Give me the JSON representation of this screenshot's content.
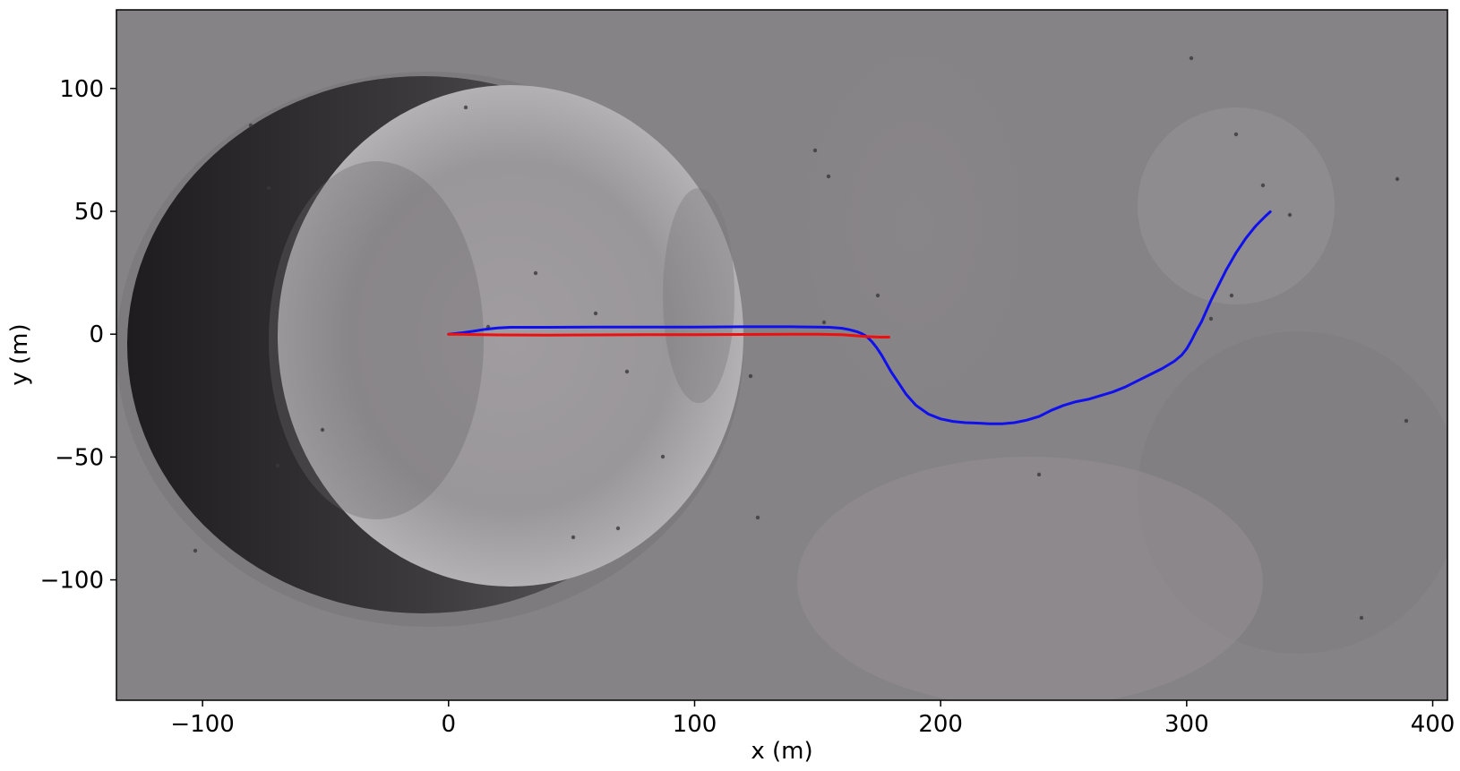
{
  "chart_data": {
    "type": "line",
    "title": "",
    "xlabel": "x (m)",
    "ylabel": "y (m)",
    "xlim": [
      -135,
      406
    ],
    "ylim": [
      -149,
      132
    ],
    "grid": false,
    "background": "grayscale lunar surface image with a large crater",
    "x_ticks": [
      {
        "value": -100,
        "label": "−100"
      },
      {
        "value": 0,
        "label": "0"
      },
      {
        "value": 100,
        "label": "100"
      },
      {
        "value": 200,
        "label": "200"
      },
      {
        "value": 300,
        "label": "300"
      },
      {
        "value": 400,
        "label": "400"
      }
    ],
    "y_ticks": [
      {
        "value": 100,
        "label": "100"
      },
      {
        "value": 50,
        "label": "50"
      },
      {
        "value": 0,
        "label": "0"
      },
      {
        "value": -50,
        "label": "−50"
      },
      {
        "value": -100,
        "label": "−100"
      }
    ],
    "series": [
      {
        "color": "#1010ee",
        "x": [
          0,
          5,
          10,
          15,
          20,
          25,
          30,
          40,
          60,
          80,
          100,
          120,
          140,
          150,
          155,
          160,
          163,
          166,
          168,
          170,
          172,
          174,
          176,
          178,
          180,
          183,
          186,
          190,
          195,
          200,
          205,
          210,
          215,
          220,
          225,
          230,
          235,
          240,
          245,
          250,
          255,
          260,
          265,
          270,
          275,
          280,
          285,
          290,
          295,
          298,
          300,
          302,
          304,
          306,
          308,
          310,
          312,
          314,
          316,
          318,
          320,
          322,
          324,
          326,
          328,
          330,
          332,
          334
        ],
        "y": [
          0,
          0.5,
          1.2,
          2.0,
          2.5,
          2.8,
          2.8,
          2.8,
          2.9,
          2.9,
          2.9,
          3.0,
          3.0,
          2.9,
          2.8,
          2.4,
          1.8,
          1.0,
          0.2,
          -1.0,
          -3.0,
          -5.5,
          -8.5,
          -12.0,
          -15.5,
          -20.0,
          -24.5,
          -29.0,
          -32.5,
          -34.5,
          -35.5,
          -36.0,
          -36.2,
          -36.5,
          -36.5,
          -36.0,
          -35.0,
          -33.5,
          -31.0,
          -29.0,
          -27.5,
          -26.5,
          -25.0,
          -23.5,
          -21.5,
          -19.0,
          -16.5,
          -14.0,
          -11.0,
          -8.5,
          -6.0,
          -2.5,
          1.5,
          5.0,
          9.5,
          14.0,
          18.0,
          22.0,
          26.0,
          29.5,
          33.0,
          36.0,
          39.0,
          41.5,
          44.0,
          46.0,
          48.0,
          49.8
        ]
      },
      {
        "color": "#ee1010",
        "x": [
          0,
          20,
          40,
          60,
          80,
          100,
          120,
          140,
          150,
          160,
          170,
          175,
          179
        ],
        "y": [
          0,
          -0.3,
          -0.4,
          -0.3,
          -0.2,
          -0.2,
          -0.1,
          0.0,
          0.0,
          -0.2,
          -1.0,
          -1.2,
          -1.2
        ]
      }
    ]
  }
}
